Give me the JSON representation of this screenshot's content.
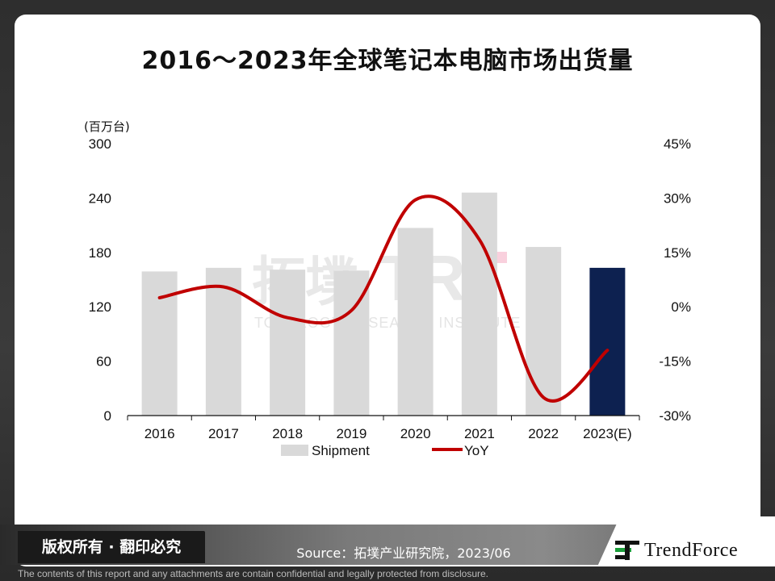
{
  "page": {
    "title": "2016～2023年全球笔记本电脑市场出货量",
    "copyright": "版权所有 · 翻印必究",
    "source": "Source：拓墣产业研究院，2023/06",
    "brand": "TrendForce",
    "disclaimer": "The contents of this report and any attachments are contain confidential and legally protected from disclosure."
  },
  "colors": {
    "bar": "#d9d9d9",
    "bar_highlight": "#0d2150",
    "line": "#c00000"
  },
  "chart_data": {
    "type": "bar",
    "categories": [
      "2016",
      "2017",
      "2018",
      "2019",
      "2020",
      "2021",
      "2022",
      "2023(E)"
    ],
    "highlight_index": 7,
    "series": [
      {
        "name": "Shipment",
        "axis": "left",
        "type": "bar",
        "values": [
          159,
          163,
          161,
          160,
          207,
          246,
          186,
          163
        ]
      },
      {
        "name": "YoY",
        "axis": "right",
        "type": "line",
        "smooth": true,
        "values": [
          2.5,
          5.5,
          -3,
          -1,
          29.5,
          18.5,
          -25,
          -12
        ]
      }
    ],
    "yleft": {
      "unit": "(百万台)",
      "min": 0,
      "max": 300,
      "ticks": [
        "0",
        "60",
        "120",
        "180",
        "240",
        "300"
      ]
    },
    "yright": {
      "min": -30,
      "max": 45,
      "ticks": [
        "-30%",
        "-15%",
        "0%",
        "15%",
        "30%",
        "45%"
      ]
    },
    "legend": {
      "placement": "bottom",
      "items": [
        "Shipment",
        "YoY"
      ]
    },
    "grid": false,
    "watermark": {
      "cn": "拓墣",
      "en": "TOPOLOGY RESEARCH INSTITUTE"
    }
  }
}
